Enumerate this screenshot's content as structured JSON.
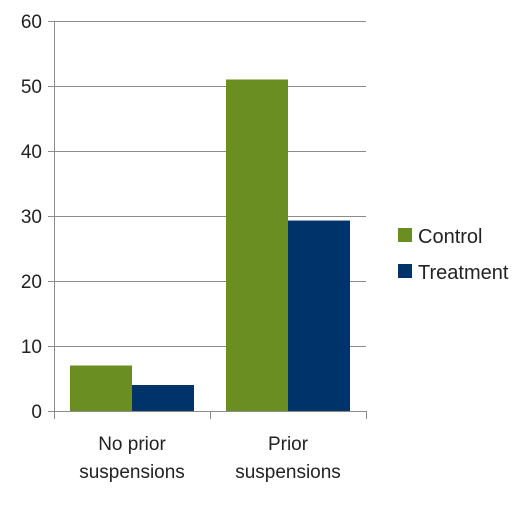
{
  "chart_data": {
    "type": "bar",
    "title": "",
    "xlabel": "",
    "ylabel": "",
    "categories": [
      [
        "No prior",
        "suspensions"
      ],
      [
        "Prior",
        "suspensions"
      ]
    ],
    "series": [
      {
        "name": "Control",
        "values": [
          7,
          51
        ],
        "color": "#6b8e23"
      },
      {
        "name": "Treatment",
        "values": [
          4,
          29.3
        ],
        "color": "#00336a"
      }
    ],
    "ylim": [
      0,
      60
    ],
    "yticks": [
      0,
      10,
      20,
      30,
      40,
      50,
      60
    ],
    "grid": true,
    "legend_position": "right"
  }
}
